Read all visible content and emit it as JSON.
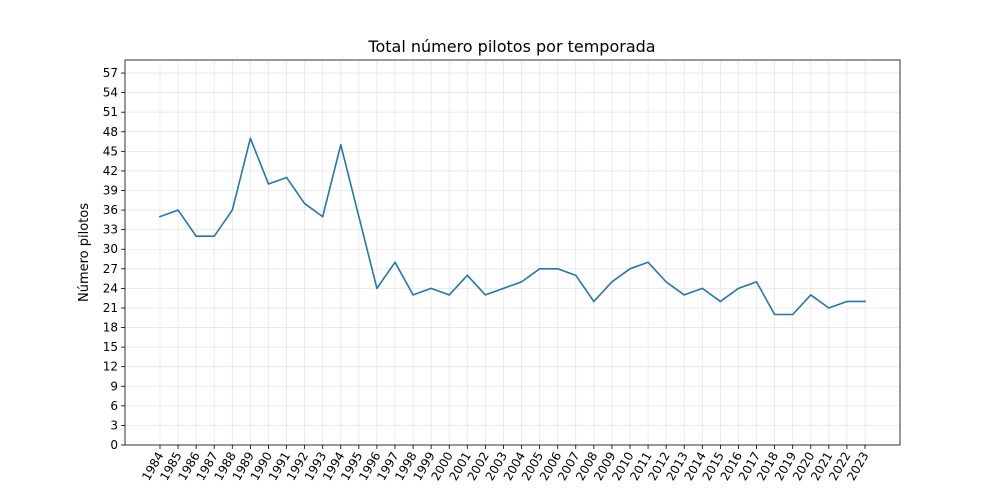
{
  "chart_data": {
    "type": "line",
    "title": "Total número pilotos por temporada",
    "xlabel": "",
    "ylabel": "Número pilotos",
    "x": [
      "1984",
      "1985",
      "1986",
      "1987",
      "1988",
      "1989",
      "1990",
      "1991",
      "1992",
      "1993",
      "1994",
      "1995",
      "1996",
      "1997",
      "1998",
      "1999",
      "2000",
      "2001",
      "2002",
      "2003",
      "2004",
      "2005",
      "2006",
      "2007",
      "2008",
      "2009",
      "2010",
      "2011",
      "2012",
      "2013",
      "2014",
      "2015",
      "2016",
      "2017",
      "2018",
      "2019",
      "2020",
      "2021",
      "2022",
      "2023"
    ],
    "series": [
      {
        "values": [
          35,
          36,
          32,
          32,
          36,
          47,
          40,
          41,
          37,
          35,
          46,
          35,
          24,
          28,
          23,
          24,
          23,
          26,
          23,
          24,
          25,
          27,
          27,
          26,
          22,
          25,
          27,
          28,
          25,
          23,
          24,
          22,
          24,
          25,
          20,
          20,
          23,
          21,
          22,
          22
        ],
        "color": "#1f77b4"
      }
    ],
    "ylim": [
      0,
      59
    ],
    "yticks": [
      0,
      3,
      6,
      9,
      12,
      15,
      18,
      21,
      24,
      27,
      30,
      33,
      36,
      39,
      42,
      45,
      48,
      51,
      54,
      57
    ],
    "grid": true,
    "x_tick_rotation": 60
  }
}
